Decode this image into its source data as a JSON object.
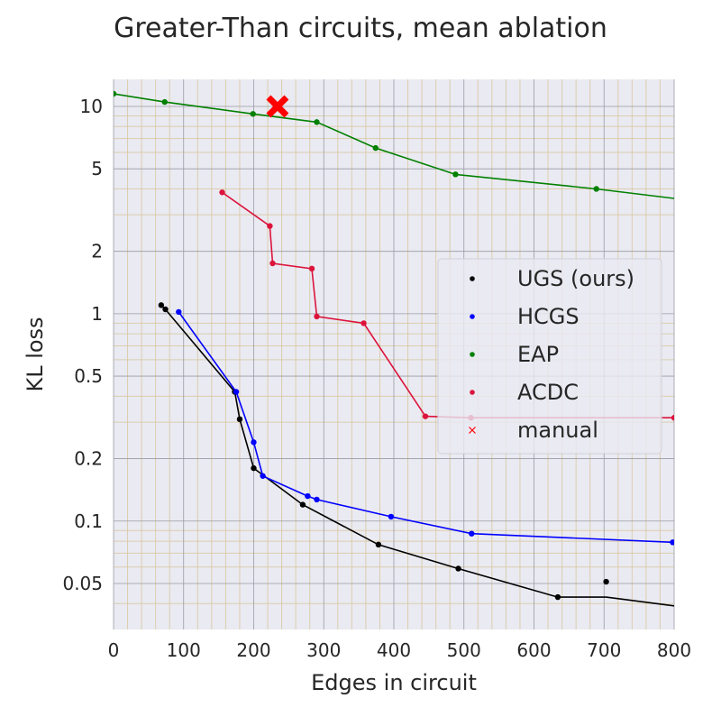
{
  "chart_data": {
    "type": "line",
    "title": "Greater-Than circuits, mean ablation",
    "xlabel": "Edges in circuit",
    "ylabel": "KL loss",
    "xlim": [
      0,
      800
    ],
    "ylim": [
      0.03,
      13.5
    ],
    "y_scale": "log",
    "grid": true,
    "legend_position": "center-right",
    "x_ticks": [
      0,
      100,
      200,
      300,
      400,
      500,
      600,
      700,
      800
    ],
    "y_ticks": [
      0.05,
      0.1,
      0.2,
      0.5,
      1,
      2,
      5,
      10
    ],
    "y_tick_labels": [
      "0.05",
      "0.1",
      "0.2",
      "0.5",
      "1",
      "2",
      "5",
      "10"
    ],
    "series": [
      {
        "name": "UGS (ours)",
        "color": "#000000",
        "marker": "dot",
        "x": [
          68,
          74,
          173,
          180,
          200,
          270,
          378,
          492,
          634,
          703,
          800
        ],
        "y": [
          1.1,
          1.05,
          0.42,
          0.31,
          0.18,
          0.12,
          0.077,
          0.059,
          0.043,
          0.043,
          0.039
        ],
        "dots": [
          [
            68,
            1.1
          ],
          [
            74,
            1.05
          ],
          [
            173,
            0.42
          ],
          [
            180,
            0.31
          ],
          [
            200,
            0.18
          ],
          [
            270,
            0.12
          ],
          [
            378,
            0.077
          ],
          [
            492,
            0.059
          ],
          [
            634,
            0.043
          ],
          [
            703,
            0.051
          ]
        ]
      },
      {
        "name": "HCGS",
        "color": "#0000ff",
        "marker": "dot",
        "x": [
          93,
          175,
          200,
          213,
          277,
          290,
          396,
          511,
          798,
          800
        ],
        "y": [
          1.02,
          0.42,
          0.24,
          0.165,
          0.132,
          0.127,
          0.105,
          0.087,
          0.079,
          0.079
        ],
        "dots": [
          [
            93,
            1.02
          ],
          [
            175,
            0.42
          ],
          [
            200,
            0.24
          ],
          [
            213,
            0.165
          ],
          [
            277,
            0.132
          ],
          [
            290,
            0.127
          ],
          [
            396,
            0.105
          ],
          [
            511,
            0.087
          ],
          [
            798,
            0.079
          ]
        ]
      },
      {
        "name": "EAP",
        "color": "#008000",
        "marker": "dot",
        "x": [
          0,
          73,
          199,
          290,
          374,
          488,
          689,
          800
        ],
        "y": [
          11.5,
          10.5,
          9.2,
          8.4,
          6.3,
          4.7,
          4.0,
          3.6
        ],
        "dots": [
          [
            0,
            11.5
          ],
          [
            73,
            10.5
          ],
          [
            199,
            9.2
          ],
          [
            290,
            8.4
          ],
          [
            374,
            6.3
          ],
          [
            488,
            4.7
          ],
          [
            689,
            4.0
          ]
        ]
      },
      {
        "name": "ACDC",
        "color": "#dc143c",
        "marker": "dot",
        "x": [
          155,
          223,
          227,
          283,
          290,
          357,
          445,
          510,
          800
        ],
        "y": [
          3.85,
          2.65,
          1.75,
          1.65,
          0.97,
          0.9,
          0.32,
          0.315,
          0.315
        ],
        "dots": [
          [
            155,
            3.85
          ],
          [
            223,
            2.65
          ],
          [
            227,
            1.75
          ],
          [
            283,
            1.65
          ],
          [
            290,
            0.97
          ],
          [
            357,
            0.9
          ],
          [
            445,
            0.32
          ],
          [
            510,
            0.315
          ],
          [
            800,
            0.315
          ]
        ]
      },
      {
        "name": "manual",
        "color": "#ff0000",
        "marker": "x",
        "x": [
          234
        ],
        "y": [
          10.0
        ],
        "dots": [
          [
            234,
            10.0
          ]
        ]
      }
    ]
  }
}
